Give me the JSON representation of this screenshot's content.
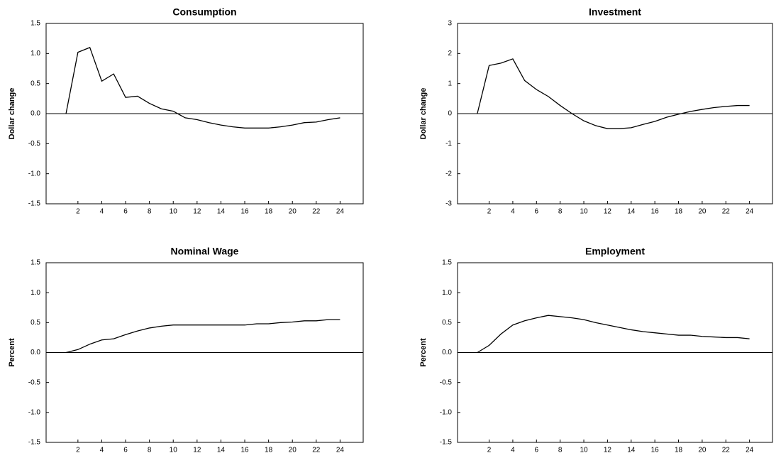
{
  "chart_data": [
    {
      "type": "line",
      "title": "Consumption",
      "ylabel": "Dollar change",
      "x": [
        1,
        2,
        3,
        4,
        5,
        6,
        7,
        8,
        9,
        10,
        11,
        12,
        13,
        14,
        15,
        16,
        17,
        18,
        19,
        20,
        21,
        22,
        23,
        24
      ],
      "values": [
        0,
        1.02,
        1.1,
        0.54,
        0.66,
        0.27,
        0.29,
        0.17,
        0.08,
        0.04,
        -0.07,
        -0.1,
        -0.15,
        -0.19,
        -0.22,
        -0.24,
        -0.24,
        -0.24,
        -0.22,
        -0.19,
        -0.15,
        -0.14,
        -0.1,
        -0.07
      ],
      "color": "#000000",
      "xlim": [
        -0.67,
        25.94
      ],
      "xticks": [
        2,
        4,
        6,
        8,
        10,
        12,
        14,
        16,
        18,
        20,
        22,
        24
      ],
      "ylim": [
        -1.5,
        1.5
      ],
      "yticks": [
        {
          "value": -1.5,
          "label": "-1.5"
        },
        {
          "value": -1,
          "label": "-1.0"
        },
        -0.5,
        {
          "value": 0,
          "label": "0.0"
        },
        0.5,
        {
          "value": 1,
          "label": "1.0"
        },
        {
          "value": 1.5,
          "label": "1.5"
        }
      ],
      "zero_line": true
    },
    {
      "type": "line",
      "title": "Investment",
      "ylabel": "Dollar change",
      "x": [
        1,
        2,
        3,
        4,
        5,
        6,
        7,
        8,
        9,
        10,
        11,
        12,
        13,
        14,
        15,
        16,
        17,
        18,
        19,
        20,
        21,
        22,
        23,
        24
      ],
      "values": [
        0,
        1.6,
        1.68,
        1.82,
        1.1,
        0.8,
        0.57,
        0.27,
        0,
        -0.24,
        -0.4,
        -0.5,
        -0.5,
        -0.47,
        -0.36,
        -0.26,
        -0.12,
        -0.02,
        0.07,
        0.14,
        0.2,
        0.24,
        0.27,
        0.27
      ],
      "color": "#000000",
      "xlim": [
        -0.67,
        25.94
      ],
      "xticks": [
        2,
        4,
        6,
        8,
        10,
        12,
        14,
        16,
        18,
        20,
        22,
        24
      ],
      "ylim": [
        -3,
        3
      ],
      "yticks": [
        -3,
        -2,
        -1,
        0,
        1,
        2,
        3
      ],
      "zero_line": true
    },
    {
      "type": "line",
      "title": "Nominal Wage",
      "ylabel": "Percent",
      "x": [
        1,
        2,
        3,
        4,
        5,
        6,
        7,
        8,
        9,
        10,
        11,
        12,
        13,
        14,
        15,
        16,
        17,
        18,
        19,
        20,
        21,
        22,
        23,
        24
      ],
      "values": [
        0,
        0.05,
        0.14,
        0.21,
        0.23,
        0.3,
        0.36,
        0.41,
        0.44,
        0.46,
        0.46,
        0.46,
        0.46,
        0.46,
        0.46,
        0.46,
        0.48,
        0.48,
        0.5,
        0.51,
        0.53,
        0.53,
        0.55,
        0.55
      ],
      "color": "#000000",
      "xlim": [
        -0.67,
        25.94
      ],
      "xticks": [
        2,
        4,
        6,
        8,
        10,
        12,
        14,
        16,
        18,
        20,
        22,
        24
      ],
      "ylim": [
        -1.5,
        1.5
      ],
      "yticks": [
        {
          "value": -1.5,
          "label": "-1.5"
        },
        {
          "value": -1,
          "label": "-1.0"
        },
        -0.5,
        {
          "value": 0,
          "label": "0.0"
        },
        0.5,
        {
          "value": 1,
          "label": "1.0"
        },
        {
          "value": 1.5,
          "label": "1.5"
        }
      ],
      "zero_line": true
    },
    {
      "type": "line",
      "title": "Employment",
      "ylabel": "Percent",
      "x": [
        1,
        2,
        3,
        4,
        5,
        6,
        7,
        8,
        9,
        10,
        11,
        12,
        13,
        14,
        15,
        16,
        17,
        18,
        19,
        20,
        21,
        22,
        23,
        24
      ],
      "values": [
        0,
        0.12,
        0.31,
        0.46,
        0.53,
        0.58,
        0.62,
        0.6,
        0.58,
        0.55,
        0.5,
        0.46,
        0.42,
        0.38,
        0.35,
        0.33,
        0.31,
        0.29,
        0.29,
        0.27,
        0.26,
        0.25,
        0.25,
        0.23
      ],
      "color": "#000000",
      "xlim": [
        -0.67,
        25.94
      ],
      "xticks": [
        2,
        4,
        6,
        8,
        10,
        12,
        14,
        16,
        18,
        20,
        22,
        24
      ],
      "ylim": [
        -1.5,
        1.5
      ],
      "yticks": [
        {
          "value": -1.5,
          "label": "-1.5"
        },
        {
          "value": -1,
          "label": "-1.0"
        },
        -0.5,
        {
          "value": 0,
          "label": "0.0"
        },
        0.5,
        {
          "value": 1,
          "label": "1.0"
        },
        {
          "value": 1.5,
          "label": "1.5"
        }
      ],
      "zero_line": true
    }
  ]
}
